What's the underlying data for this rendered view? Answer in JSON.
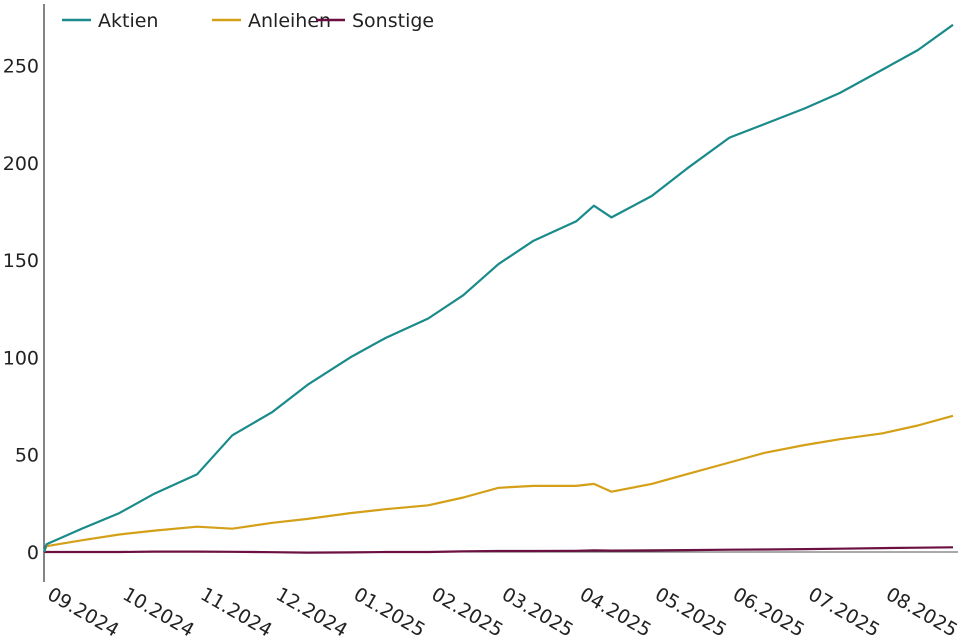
{
  "chart_data": {
    "type": "line",
    "title": "",
    "xlabel": "",
    "ylabel": "",
    "ylim": [
      -15,
      285
    ],
    "yticks": [
      0,
      50,
      100,
      150,
      200,
      250
    ],
    "grid": false,
    "legend_position": "top-left",
    "x_tick_labels": [
      "09.2024",
      "10.2024",
      "11.2024",
      "12.2024",
      "01.2025",
      "02.2025",
      "03.2025",
      "04.2025",
      "05.2025",
      "06.2025",
      "07.2025",
      "08.2025"
    ],
    "x": [
      "2024-09-02",
      "2024-09-16",
      "2024-10-01",
      "2024-10-15",
      "2024-11-01",
      "2024-11-15",
      "2024-12-01",
      "2024-12-15",
      "2025-01-01",
      "2025-01-15",
      "2025-02-01",
      "2025-02-15",
      "2025-03-01",
      "2025-03-15",
      "2025-04-01",
      "2025-04-08",
      "2025-04-15",
      "2025-05-01",
      "2025-05-15",
      "2025-06-01",
      "2025-06-15",
      "2025-07-01",
      "2025-07-15",
      "2025-08-01",
      "2025-08-15",
      "2025-08-29"
    ],
    "series": [
      {
        "name": "Aktien",
        "color": "#1a8a8a",
        "values": [
          4,
          12,
          20,
          30,
          40,
          60,
          72,
          86,
          100,
          110,
          120,
          132,
          148,
          160,
          170,
          178,
          172,
          183,
          197,
          213,
          220,
          228,
          236,
          248,
          258,
          271
        ]
      },
      {
        "name": "Anleihen",
        "color": "#d4a017",
        "values": [
          3,
          6,
          9,
          11,
          13,
          12,
          15,
          17,
          20,
          22,
          24,
          28,
          33,
          34,
          34,
          35,
          31,
          35,
          40,
          46,
          51,
          55,
          58,
          61,
          65,
          70
        ]
      },
      {
        "name": "Sonstige",
        "color": "#6b1040",
        "values": [
          0,
          0,
          0,
          0.2,
          0.2,
          0.1,
          -0.1,
          -0.3,
          -0.2,
          0,
          0,
          0.3,
          0.5,
          0.5,
          0.6,
          0.8,
          0.7,
          0.8,
          1,
          1.2,
          1.3,
          1.5,
          1.7,
          2,
          2.2,
          2.4
        ]
      }
    ]
  }
}
